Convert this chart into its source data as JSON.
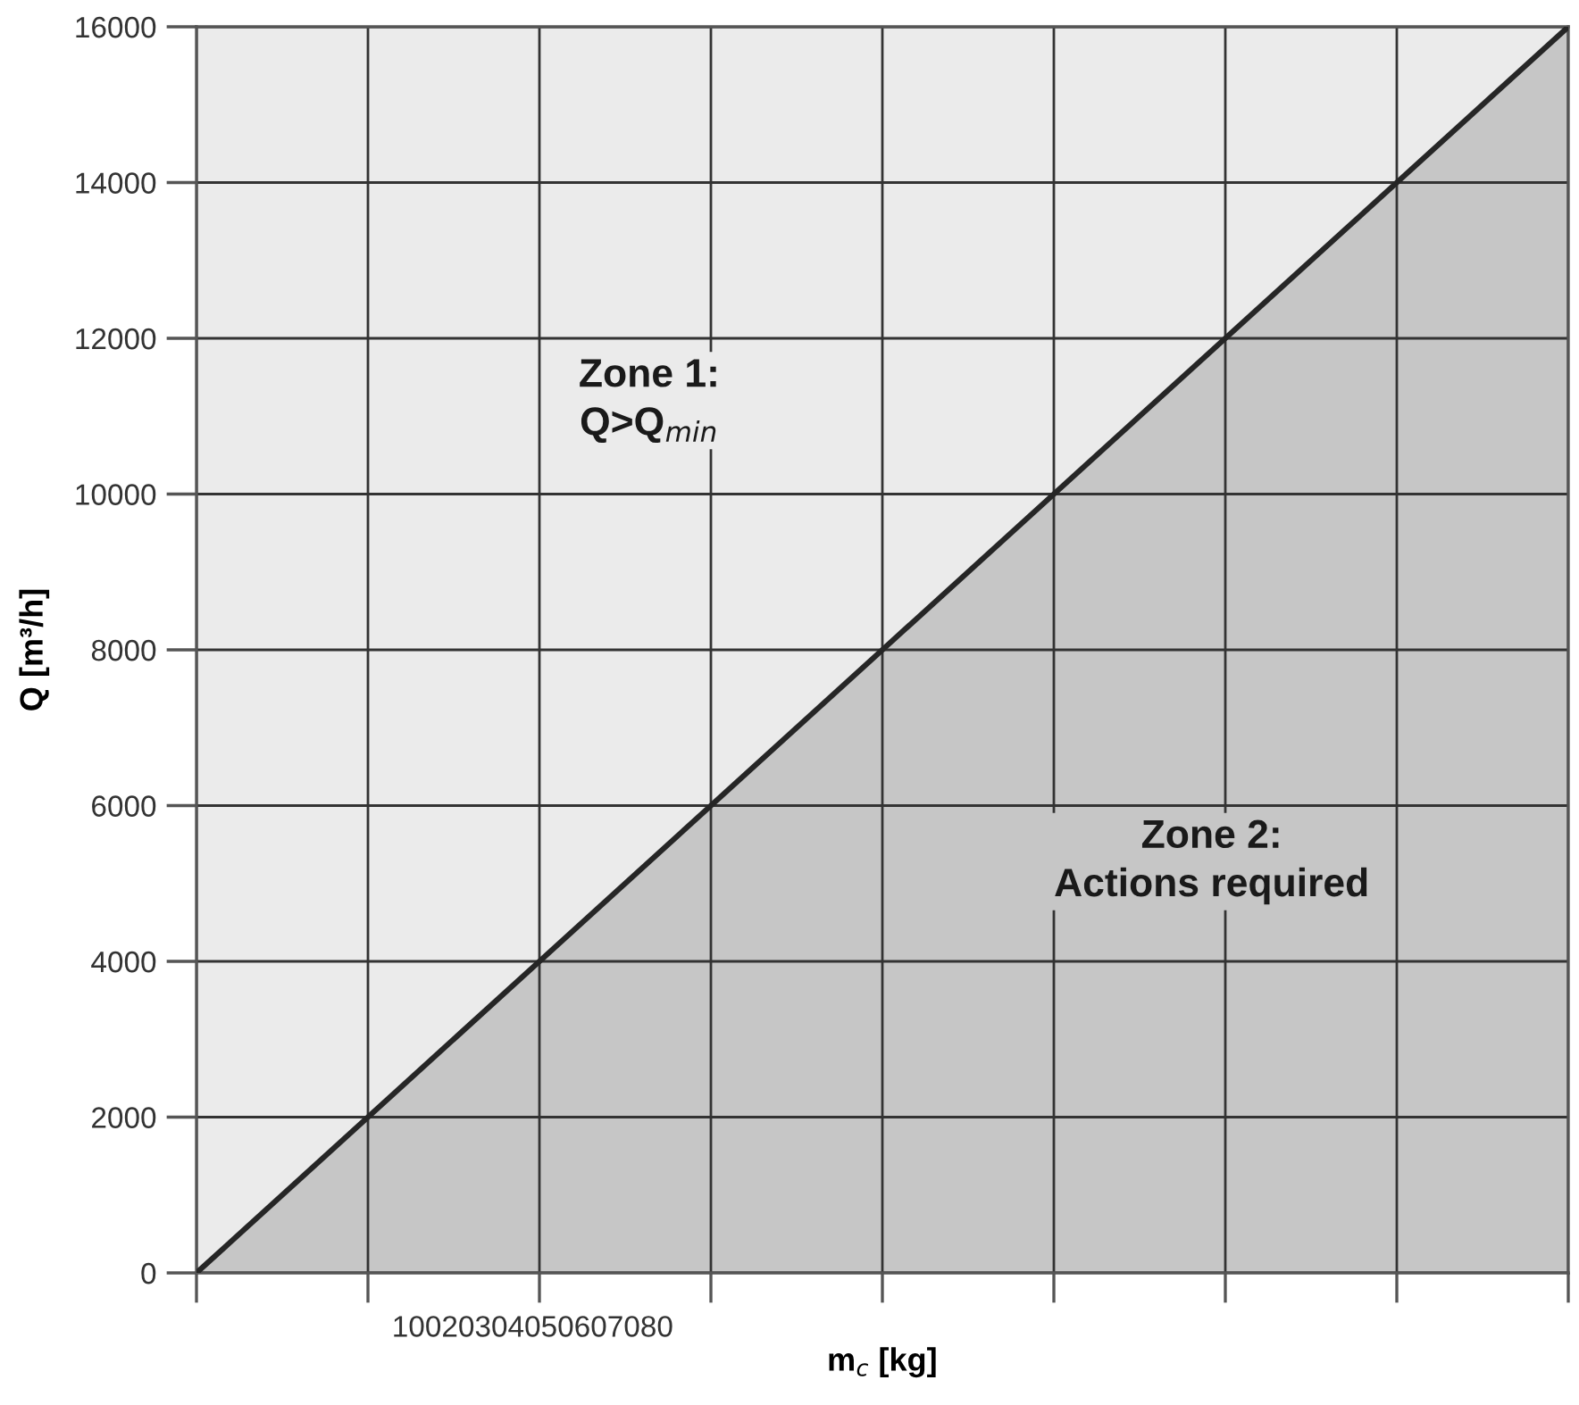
{
  "chart_data": {
    "type": "area",
    "xlabel": "m$_{c}$ [kg]",
    "ylabel": "Q [m³/h]",
    "annotations": [
      "Zone 1:\nQ>Q$_{min}$",
      "Zone 2:\nActions required",
      "10020304050607080"
    ],
    "categories": [
      null,
      null,
      null,
      null,
      null,
      null,
      null,
      null,
      null
    ],
    "series": [
      {
        "color": "#c6c6c6",
        "values": [
          0,
          2000,
          4000,
          6000,
          8000,
          10000,
          12000,
          14000,
          16000
        ]
      }
    ],
    "ylim": [
      0,
      16000
    ],
    "yticks": [
      0,
      2000,
      4000,
      6000,
      8000,
      10000,
      12000,
      14000,
      16000
    ],
    "grid": true,
    "marker": "none",
    "line_style": "solid"
  }
}
